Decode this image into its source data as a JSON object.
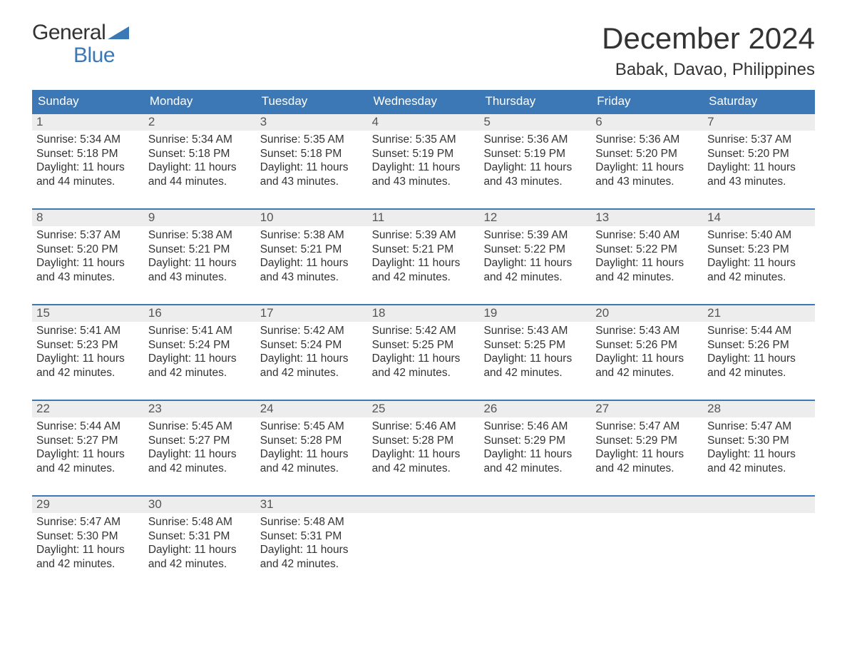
{
  "logo": {
    "word1": "General",
    "word2": "Blue"
  },
  "title": "December 2024",
  "location": "Babak, Davao, Philippines",
  "colors": {
    "header_bg": "#3b78b5",
    "header_text": "#ffffff",
    "page_bg": "#ffffff",
    "daynum_bg": "#ededed",
    "daynum_text": "#555555",
    "body_text": "#333333",
    "week_border": "#3b78b5",
    "logo_accent": "#3b78b5"
  },
  "weekday_labels": [
    "Sunday",
    "Monday",
    "Tuesday",
    "Wednesday",
    "Thursday",
    "Friday",
    "Saturday"
  ],
  "sunrise_label": "Sunrise:",
  "sunset_label": "Sunset:",
  "daylight_label": "Daylight:",
  "days": [
    {
      "n": 1,
      "sunrise": "5:34 AM",
      "sunset": "5:18 PM",
      "daylight": "11 hours and 44 minutes."
    },
    {
      "n": 2,
      "sunrise": "5:34 AM",
      "sunset": "5:18 PM",
      "daylight": "11 hours and 44 minutes."
    },
    {
      "n": 3,
      "sunrise": "5:35 AM",
      "sunset": "5:18 PM",
      "daylight": "11 hours and 43 minutes."
    },
    {
      "n": 4,
      "sunrise": "5:35 AM",
      "sunset": "5:19 PM",
      "daylight": "11 hours and 43 minutes."
    },
    {
      "n": 5,
      "sunrise": "5:36 AM",
      "sunset": "5:19 PM",
      "daylight": "11 hours and 43 minutes."
    },
    {
      "n": 6,
      "sunrise": "5:36 AM",
      "sunset": "5:20 PM",
      "daylight": "11 hours and 43 minutes."
    },
    {
      "n": 7,
      "sunrise": "5:37 AM",
      "sunset": "5:20 PM",
      "daylight": "11 hours and 43 minutes."
    },
    {
      "n": 8,
      "sunrise": "5:37 AM",
      "sunset": "5:20 PM",
      "daylight": "11 hours and 43 minutes."
    },
    {
      "n": 9,
      "sunrise": "5:38 AM",
      "sunset": "5:21 PM",
      "daylight": "11 hours and 43 minutes."
    },
    {
      "n": 10,
      "sunrise": "5:38 AM",
      "sunset": "5:21 PM",
      "daylight": "11 hours and 43 minutes."
    },
    {
      "n": 11,
      "sunrise": "5:39 AM",
      "sunset": "5:21 PM",
      "daylight": "11 hours and 42 minutes."
    },
    {
      "n": 12,
      "sunrise": "5:39 AM",
      "sunset": "5:22 PM",
      "daylight": "11 hours and 42 minutes."
    },
    {
      "n": 13,
      "sunrise": "5:40 AM",
      "sunset": "5:22 PM",
      "daylight": "11 hours and 42 minutes."
    },
    {
      "n": 14,
      "sunrise": "5:40 AM",
      "sunset": "5:23 PM",
      "daylight": "11 hours and 42 minutes."
    },
    {
      "n": 15,
      "sunrise": "5:41 AM",
      "sunset": "5:23 PM",
      "daylight": "11 hours and 42 minutes."
    },
    {
      "n": 16,
      "sunrise": "5:41 AM",
      "sunset": "5:24 PM",
      "daylight": "11 hours and 42 minutes."
    },
    {
      "n": 17,
      "sunrise": "5:42 AM",
      "sunset": "5:24 PM",
      "daylight": "11 hours and 42 minutes."
    },
    {
      "n": 18,
      "sunrise": "5:42 AM",
      "sunset": "5:25 PM",
      "daylight": "11 hours and 42 minutes."
    },
    {
      "n": 19,
      "sunrise": "5:43 AM",
      "sunset": "5:25 PM",
      "daylight": "11 hours and 42 minutes."
    },
    {
      "n": 20,
      "sunrise": "5:43 AM",
      "sunset": "5:26 PM",
      "daylight": "11 hours and 42 minutes."
    },
    {
      "n": 21,
      "sunrise": "5:44 AM",
      "sunset": "5:26 PM",
      "daylight": "11 hours and 42 minutes."
    },
    {
      "n": 22,
      "sunrise": "5:44 AM",
      "sunset": "5:27 PM",
      "daylight": "11 hours and 42 minutes."
    },
    {
      "n": 23,
      "sunrise": "5:45 AM",
      "sunset": "5:27 PM",
      "daylight": "11 hours and 42 minutes."
    },
    {
      "n": 24,
      "sunrise": "5:45 AM",
      "sunset": "5:28 PM",
      "daylight": "11 hours and 42 minutes."
    },
    {
      "n": 25,
      "sunrise": "5:46 AM",
      "sunset": "5:28 PM",
      "daylight": "11 hours and 42 minutes."
    },
    {
      "n": 26,
      "sunrise": "5:46 AM",
      "sunset": "5:29 PM",
      "daylight": "11 hours and 42 minutes."
    },
    {
      "n": 27,
      "sunrise": "5:47 AM",
      "sunset": "5:29 PM",
      "daylight": "11 hours and 42 minutes."
    },
    {
      "n": 28,
      "sunrise": "5:47 AM",
      "sunset": "5:30 PM",
      "daylight": "11 hours and 42 minutes."
    },
    {
      "n": 29,
      "sunrise": "5:47 AM",
      "sunset": "5:30 PM",
      "daylight": "11 hours and 42 minutes."
    },
    {
      "n": 30,
      "sunrise": "5:48 AM",
      "sunset": "5:31 PM",
      "daylight": "11 hours and 42 minutes."
    },
    {
      "n": 31,
      "sunrise": "5:48 AM",
      "sunset": "5:31 PM",
      "daylight": "11 hours and 42 minutes."
    }
  ],
  "start_weekday_index": 0,
  "typography": {
    "title_fontsize": 42,
    "location_fontsize": 24,
    "weekday_fontsize": 17,
    "daynum_fontsize": 17,
    "body_fontsize": 15.5,
    "logo_fontsize": 30
  }
}
